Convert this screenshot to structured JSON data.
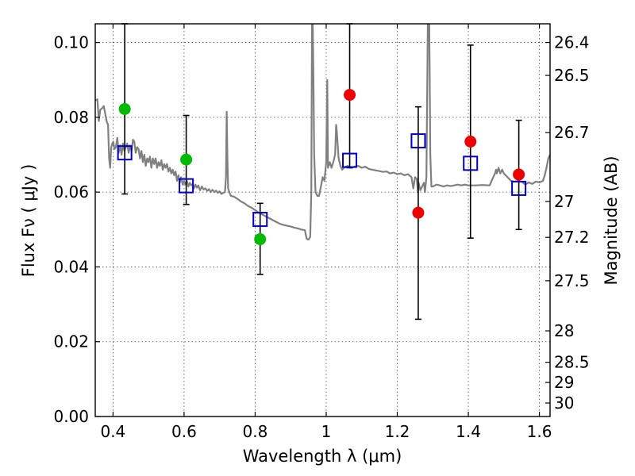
{
  "chart_data": {
    "type": "scatter",
    "xlabel": "Wavelength  λ (μm)",
    "ylabel": "Flux  Fν  ( μJy )",
    "ylabel_right": "Magnitude (AB)",
    "xlim": [
      0.35,
      1.63
    ],
    "ylim": [
      0.0,
      0.105
    ],
    "grid": true,
    "x_ticks": [
      0.4,
      0.6,
      0.8,
      1.0,
      1.2,
      1.4,
      1.6
    ],
    "x_tick_labels": [
      "0.4",
      "0.6",
      "0.8",
      "1",
      "1.2",
      "1.4",
      "1.6"
    ],
    "y_ticks": [
      0.0,
      0.02,
      0.04,
      0.06,
      0.08,
      0.1
    ],
    "y_tick_labels": [
      "0.00",
      "0.02",
      "0.04",
      "0.06",
      "0.08",
      "0.10"
    ],
    "right_ticks": [
      {
        "label": "26.4",
        "flux": 0.1
      },
      {
        "label": "26.5",
        "flux": 0.0912
      },
      {
        "label": "26.7",
        "flux": 0.0759
      },
      {
        "label": "27",
        "flux": 0.0575
      },
      {
        "label": "27.2",
        "flux": 0.0479
      },
      {
        "label": "27.5",
        "flux": 0.0363
      },
      {
        "label": "28",
        "flux": 0.0229
      },
      {
        "label": "28.5",
        "flux": 0.0145
      },
      {
        "label": "29",
        "flux": 0.0091
      },
      {
        "label": "30",
        "flux": 0.0036
      }
    ],
    "series": [
      {
        "kind": "line",
        "color": "#808080",
        "points": [
          [
            0.35,
            0.0845
          ],
          [
            0.356,
            0.0848
          ],
          [
            0.36,
            0.079
          ],
          [
            0.364,
            0.082
          ],
          [
            0.37,
            0.0825
          ],
          [
            0.374,
            0.083
          ],
          [
            0.378,
            0.081
          ],
          [
            0.382,
            0.079
          ],
          [
            0.386,
            0.078
          ],
          [
            0.389,
            0.069
          ],
          [
            0.392,
            0.0665
          ],
          [
            0.395,
            0.072
          ],
          [
            0.398,
            0.073
          ],
          [
            0.401,
            0.0735
          ],
          [
            0.404,
            0.0715
          ],
          [
            0.408,
            0.072
          ],
          [
            0.412,
            0.0745
          ],
          [
            0.416,
            0.0705
          ],
          [
            0.42,
            0.0725
          ],
          [
            0.424,
            0.07
          ],
          [
            0.428,
            0.073
          ],
          [
            0.432,
            0.071
          ],
          [
            0.436,
            0.072
          ],
          [
            0.44,
            0.073
          ],
          [
            0.444,
            0.0705
          ],
          [
            0.448,
            0.0725
          ],
          [
            0.452,
            0.071
          ],
          [
            0.456,
            0.074
          ],
          [
            0.46,
            0.0735
          ],
          [
            0.464,
            0.0705
          ],
          [
            0.468,
            0.072
          ],
          [
            0.472,
            0.0715
          ],
          [
            0.476,
            0.069
          ],
          [
            0.48,
            0.071
          ],
          [
            0.484,
            0.068
          ],
          [
            0.488,
            0.07
          ],
          [
            0.492,
            0.067
          ],
          [
            0.496,
            0.069
          ],
          [
            0.5,
            0.068
          ],
          [
            0.504,
            0.0695
          ],
          [
            0.508,
            0.0665
          ],
          [
            0.512,
            0.069
          ],
          [
            0.516,
            0.0675
          ],
          [
            0.52,
            0.069
          ],
          [
            0.524,
            0.0665
          ],
          [
            0.528,
            0.068
          ],
          [
            0.532,
            0.067
          ],
          [
            0.536,
            0.0685
          ],
          [
            0.54,
            0.066
          ],
          [
            0.544,
            0.0675
          ],
          [
            0.548,
            0.0665
          ],
          [
            0.552,
            0.0675
          ],
          [
            0.556,
            0.0655
          ],
          [
            0.56,
            0.0665
          ],
          [
            0.564,
            0.065
          ],
          [
            0.568,
            0.066
          ],
          [
            0.572,
            0.0645
          ],
          [
            0.576,
            0.0655
          ],
          [
            0.58,
            0.063
          ],
          [
            0.584,
            0.0645
          ],
          [
            0.588,
            0.0625
          ],
          [
            0.592,
            0.064
          ],
          [
            0.596,
            0.062
          ],
          [
            0.6,
            0.063
          ],
          [
            0.604,
            0.062
          ],
          [
            0.608,
            0.063
          ],
          [
            0.612,
            0.0615
          ],
          [
            0.616,
            0.0625
          ],
          [
            0.62,
            0.0618
          ],
          [
            0.624,
            0.0622
          ],
          [
            0.628,
            0.061
          ],
          [
            0.632,
            0.062
          ],
          [
            0.636,
            0.0612
          ],
          [
            0.64,
            0.0618
          ],
          [
            0.645,
            0.0605
          ],
          [
            0.65,
            0.0615
          ],
          [
            0.655,
            0.0607
          ],
          [
            0.66,
            0.061
          ],
          [
            0.665,
            0.0603
          ],
          [
            0.67,
            0.0608
          ],
          [
            0.675,
            0.06
          ],
          [
            0.68,
            0.0606
          ],
          [
            0.685,
            0.06
          ],
          [
            0.69,
            0.0604
          ],
          [
            0.695,
            0.0598
          ],
          [
            0.7,
            0.0602
          ],
          [
            0.705,
            0.0595
          ],
          [
            0.71,
            0.0598
          ],
          [
            0.715,
            0.06
          ],
          [
            0.718,
            0.064
          ],
          [
            0.72,
            0.0815
          ],
          [
            0.722,
            0.069
          ],
          [
            0.724,
            0.061
          ],
          [
            0.728,
            0.0598
          ],
          [
            0.732,
            0.059
          ],
          [
            0.74,
            0.0588
          ],
          [
            0.75,
            0.0582
          ],
          [
            0.76,
            0.0575
          ],
          [
            0.77,
            0.057
          ],
          [
            0.78,
            0.0563
          ],
          [
            0.79,
            0.0558
          ],
          [
            0.8,
            0.0552
          ],
          [
            0.81,
            0.0545
          ],
          [
            0.82,
            0.054
          ],
          [
            0.83,
            0.0535
          ],
          [
            0.84,
            0.053
          ],
          [
            0.85,
            0.0525
          ],
          [
            0.86,
            0.052
          ],
          [
            0.87,
            0.0515
          ],
          [
            0.88,
            0.0512
          ],
          [
            0.89,
            0.051
          ],
          [
            0.9,
            0.0508
          ],
          [
            0.91,
            0.0505
          ],
          [
            0.92,
            0.0503
          ],
          [
            0.93,
            0.05
          ],
          [
            0.94,
            0.0498
          ],
          [
            0.945,
            0.0475
          ],
          [
            0.95,
            0.0473
          ],
          [
            0.955,
            0.048
          ],
          [
            0.958,
            0.06
          ],
          [
            0.96,
            0.105
          ],
          [
            0.962,
            0.105
          ],
          [
            0.964,
            0.09
          ],
          [
            0.966,
            0.07
          ],
          [
            0.97,
            0.06
          ],
          [
            0.975,
            0.059
          ],
          [
            0.98,
            0.059
          ],
          [
            0.985,
            0.0615
          ],
          [
            0.99,
            0.064
          ],
          [
            0.995,
            0.063
          ],
          [
            1.0,
            0.068
          ],
          [
            1.003,
            0.09
          ],
          [
            1.005,
            0.0665
          ],
          [
            1.01,
            0.068
          ],
          [
            1.015,
            0.0665
          ],
          [
            1.02,
            0.068
          ],
          [
            1.025,
            0.07
          ],
          [
            1.028,
            0.078
          ],
          [
            1.03,
            0.076
          ],
          [
            1.035,
            0.069
          ],
          [
            1.04,
            0.067
          ],
          [
            1.045,
            0.066
          ],
          [
            1.05,
            0.0665
          ],
          [
            1.06,
            0.067
          ],
          [
            1.07,
            0.0665
          ],
          [
            1.08,
            0.0668
          ],
          [
            1.09,
            0.067
          ],
          [
            1.1,
            0.0665
          ],
          [
            1.11,
            0.0668
          ],
          [
            1.12,
            0.0662
          ],
          [
            1.13,
            0.066
          ],
          [
            1.14,
            0.0658
          ],
          [
            1.15,
            0.0656
          ],
          [
            1.16,
            0.0654
          ],
          [
            1.17,
            0.0655
          ],
          [
            1.18,
            0.065
          ],
          [
            1.19,
            0.0652
          ],
          [
            1.2,
            0.0648
          ],
          [
            1.21,
            0.065
          ],
          [
            1.22,
            0.0645
          ],
          [
            1.23,
            0.0648
          ],
          [
            1.24,
            0.064
          ],
          [
            1.245,
            0.061
          ],
          [
            1.25,
            0.064
          ],
          [
            1.255,
            0.0635
          ],
          [
            1.258,
            0.06
          ],
          [
            1.26,
            0.0625
          ],
          [
            1.265,
            0.0605
          ],
          [
            1.27,
            0.0615
          ],
          [
            1.275,
            0.0625
          ],
          [
            1.278,
            0.06
          ],
          [
            1.282,
            0.064
          ],
          [
            1.286,
            0.105
          ],
          [
            1.29,
            0.105
          ],
          [
            1.293,
            0.07
          ],
          [
            1.296,
            0.0615
          ],
          [
            1.3,
            0.0615
          ],
          [
            1.31,
            0.062
          ],
          [
            1.32,
            0.0618
          ],
          [
            1.33,
            0.0615
          ],
          [
            1.34,
            0.0618
          ],
          [
            1.35,
            0.0616
          ],
          [
            1.36,
            0.0618
          ],
          [
            1.37,
            0.062
          ],
          [
            1.38,
            0.0618
          ],
          [
            1.39,
            0.062
          ],
          [
            1.4,
            0.0618
          ],
          [
            1.42,
            0.0618
          ],
          [
            1.44,
            0.0619
          ],
          [
            1.46,
            0.0618
          ],
          [
            1.47,
            0.064
          ],
          [
            1.475,
            0.065
          ],
          [
            1.478,
            0.066
          ],
          [
            1.48,
            0.065
          ],
          [
            1.485,
            0.0665
          ],
          [
            1.49,
            0.065
          ],
          [
            1.495,
            0.066
          ],
          [
            1.5,
            0.065
          ],
          [
            1.51,
            0.064
          ],
          [
            1.52,
            0.063
          ],
          [
            1.53,
            0.0628
          ],
          [
            1.54,
            0.063
          ],
          [
            1.55,
            0.0628
          ],
          [
            1.56,
            0.062
          ],
          [
            1.57,
            0.0626
          ],
          [
            1.58,
            0.0622
          ],
          [
            1.59,
            0.0628
          ],
          [
            1.6,
            0.0626
          ],
          [
            1.61,
            0.063
          ],
          [
            1.615,
            0.0645
          ],
          [
            1.62,
            0.0665
          ],
          [
            1.625,
            0.069
          ],
          [
            1.63,
            0.07
          ]
        ]
      },
      {
        "kind": "errorbar",
        "color": "#000000",
        "points": [
          {
            "x": 0.433,
            "lo": 0.0595,
            "hi": 0.105
          },
          {
            "x": 0.606,
            "lo": 0.0567,
            "hi": 0.0805
          },
          {
            "x": 0.814,
            "lo": 0.038,
            "hi": 0.057
          },
          {
            "x": 1.066,
            "lo": 0.0665,
            "hi": 0.105
          },
          {
            "x": 1.259,
            "lo": 0.026,
            "hi": 0.0828
          },
          {
            "x": 1.406,
            "lo": 0.0477,
            "hi": 0.0993
          },
          {
            "x": 1.542,
            "lo": 0.05,
            "hi": 0.0792
          }
        ]
      },
      {
        "kind": "model",
        "marker": "open-square",
        "color": "#0000cc",
        "points": [
          [
            0.433,
            0.0705
          ],
          [
            0.606,
            0.0617
          ],
          [
            0.814,
            0.0527
          ],
          [
            1.066,
            0.0685
          ],
          [
            1.259,
            0.0737
          ],
          [
            1.406,
            0.0677
          ],
          [
            1.542,
            0.061
          ]
        ]
      },
      {
        "kind": "observed",
        "marker": "filled-circle",
        "color": "#00bb00",
        "points": [
          [
            0.433,
            0.0822
          ],
          [
            0.606,
            0.0687
          ],
          [
            0.814,
            0.0474
          ]
        ]
      },
      {
        "kind": "observed",
        "marker": "filled-circle",
        "color": "#ee0000",
        "points": [
          [
            1.066,
            0.086
          ],
          [
            1.259,
            0.0545
          ],
          [
            1.406,
            0.0735
          ],
          [
            1.542,
            0.0647
          ]
        ]
      }
    ]
  }
}
